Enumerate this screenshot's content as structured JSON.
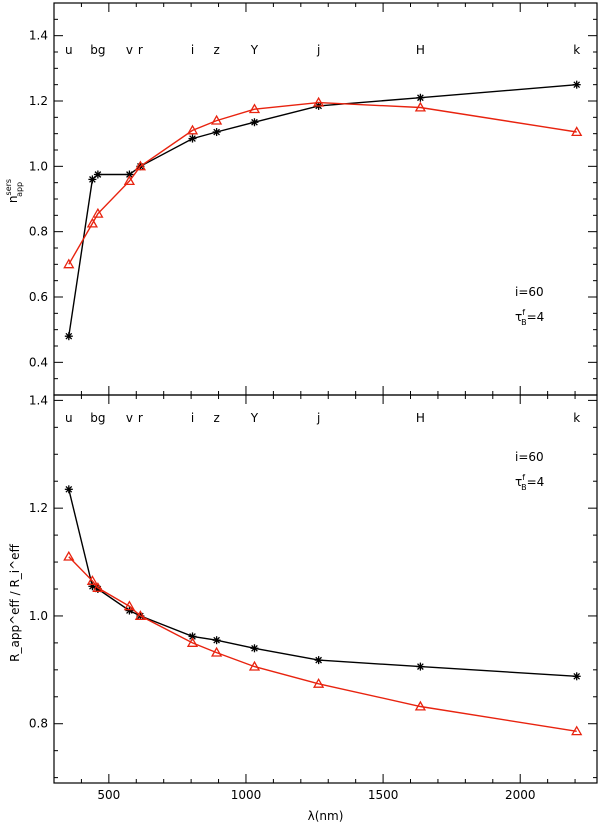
{
  "chart_data": [
    {
      "type": "line",
      "xlabel": "",
      "ylabel": "n_app^sers",
      "ylabel_main": "n",
      "ylabel_sup": "sers",
      "ylabel_sub": "app",
      "xlim": [
        300,
        2280
      ],
      "ylim": [
        0.3,
        1.5
      ],
      "yticks": [
        "0.4",
        "0.6",
        "0.8",
        "1.0",
        "1.2",
        "1.4"
      ],
      "ytick_values": [
        0.4,
        0.6,
        0.8,
        1.0,
        1.2,
        1.4
      ],
      "bands": [
        {
          "label": "u",
          "x": 354
        },
        {
          "label": "bg",
          "x": 460
        },
        {
          "label": "v",
          "x": 575
        },
        {
          "label": "r",
          "x": 615
        },
        {
          "label": "i",
          "x": 805
        },
        {
          "label": "z",
          "x": 893
        },
        {
          "label": "Y",
          "x": 1031
        },
        {
          "label": "j",
          "x": 1265
        },
        {
          "label": "H",
          "x": 1636
        },
        {
          "label": "k",
          "x": 2206
        }
      ],
      "annotations": [
        "i=60",
        "τ_B^f=4"
      ],
      "annot_incl": "i=60",
      "annot_tau": "τ",
      "annot_tau_sub": "B",
      "annot_tau_sup": "f",
      "annot_tau_val": "=4",
      "series": [
        {
          "marker": "asterisk",
          "color": "#000000",
          "x": [
            354,
            440,
            460,
            575,
            615,
            805,
            893,
            1031,
            1265,
            1636,
            2206
          ],
          "y": [
            0.48,
            0.96,
            0.975,
            0.975,
            1.0,
            1.085,
            1.105,
            1.135,
            1.185,
            1.21,
            1.25
          ]
        },
        {
          "marker": "triangle",
          "color": "#e8230f",
          "x": [
            354,
            440,
            460,
            575,
            615,
            805,
            893,
            1031,
            1265,
            1636,
            2206
          ],
          "y": [
            0.7,
            0.825,
            0.855,
            0.955,
            1.0,
            1.11,
            1.14,
            1.175,
            1.195,
            1.18,
            1.105
          ]
        }
      ]
    },
    {
      "type": "line",
      "xlabel": "λ(nm)",
      "ylabel": "R_app^eff / R_i^eff",
      "xlim": [
        300,
        2280
      ],
      "ylim": [
        0.69,
        1.41
      ],
      "xticks": [
        "500",
        "1000",
        "1500",
        "2000"
      ],
      "xtick_values": [
        500,
        1000,
        1500,
        2000
      ],
      "yticks": [
        "0.8",
        "1.0",
        "1.2",
        "1.4"
      ],
      "ytick_values": [
        0.8,
        1.0,
        1.2,
        1.4
      ],
      "bands": [
        {
          "label": "u",
          "x": 354
        },
        {
          "label": "bg",
          "x": 460
        },
        {
          "label": "v",
          "x": 575
        },
        {
          "label": "r",
          "x": 615
        },
        {
          "label": "i",
          "x": 805
        },
        {
          "label": "z",
          "x": 893
        },
        {
          "label": "Y",
          "x": 1031
        },
        {
          "label": "j",
          "x": 1265
        },
        {
          "label": "H",
          "x": 1636
        },
        {
          "label": "k",
          "x": 2206
        }
      ],
      "annotations": [
        "i=60",
        "τ_B^f=4"
      ],
      "annot_incl": "i=60",
      "annot_tau": "τ",
      "annot_tau_sub": "B",
      "annot_tau_sup": "f",
      "annot_tau_val": "=4",
      "series": [
        {
          "marker": "asterisk",
          "color": "#000000",
          "x": [
            354,
            440,
            460,
            575,
            615,
            805,
            893,
            1031,
            1265,
            1636,
            2206
          ],
          "y": [
            1.235,
            1.055,
            1.05,
            1.01,
            1.0,
            0.962,
            0.955,
            0.94,
            0.918,
            0.906,
            0.888
          ]
        },
        {
          "marker": "triangle",
          "color": "#e8230f",
          "x": [
            354,
            440,
            460,
            575,
            615,
            805,
            893,
            1031,
            1265,
            1636,
            2206
          ],
          "y": [
            1.11,
            1.065,
            1.052,
            1.018,
            1.0,
            0.95,
            0.932,
            0.906,
            0.874,
            0.832,
            0.786
          ]
        }
      ]
    }
  ]
}
